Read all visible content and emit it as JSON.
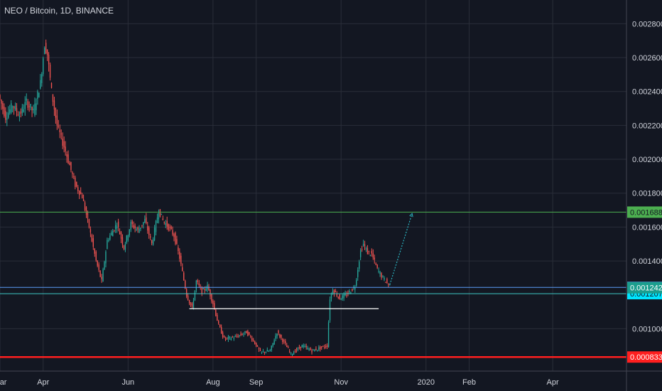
{
  "header": {
    "symbol": "NEO / Bitcoin, 1D, BINANCE"
  },
  "colors": {
    "background": "#131722",
    "grid": "#2a2e39",
    "up": "#26a69a",
    "down": "#ef5350",
    "text": "#d1d4dc",
    "green_line": "#4caf50",
    "blue_line": "#5b9cf6",
    "teal_line": "#3dc6c4",
    "red_line": "#ff1f1f",
    "white_line": "#ffffff",
    "forecast": "#2bb3c0"
  },
  "chart_data": {
    "type": "candlestick",
    "title": "NEO / Bitcoin, 1D, BINANCE",
    "x_ticks": [
      "Mar",
      "Apr",
      "Jun",
      "Aug",
      "Sep",
      "Nov",
      "2020",
      "Feb",
      "Apr"
    ],
    "x_tick_days": [
      0,
      31,
      92,
      153,
      184,
      245,
      306,
      337,
      397
    ],
    "x_range_days": [
      0,
      450
    ],
    "y_ticks": [
      "0.002800",
      "0.002600",
      "0.002400",
      "0.002200",
      "0.002000",
      "0.001800",
      "0.001600",
      "0.001400",
      "0.001000"
    ],
    "y_tick_values": [
      0.0028,
      0.0026,
      0.0024,
      0.0022,
      0.002,
      0.0018,
      0.0016,
      0.0014,
      0.001
    ],
    "ylim": [
      0.00075,
      0.00294
    ],
    "price_path": [
      [
        0,
        0.00238
      ],
      [
        5,
        0.00225
      ],
      [
        10,
        0.00232
      ],
      [
        15,
        0.00226
      ],
      [
        20,
        0.00234
      ],
      [
        25,
        0.00228
      ],
      [
        30,
        0.00245
      ],
      [
        33,
        0.00268
      ],
      [
        35,
        0.00262
      ],
      [
        38,
        0.0024
      ],
      [
        42,
        0.0022
      ],
      [
        48,
        0.00205
      ],
      [
        55,
        0.00185
      ],
      [
        60,
        0.00178
      ],
      [
        65,
        0.0016
      ],
      [
        70,
        0.0014
      ],
      [
        74,
        0.00128
      ],
      [
        78,
        0.00152
      ],
      [
        85,
        0.00162
      ],
      [
        90,
        0.00148
      ],
      [
        95,
        0.00162
      ],
      [
        100,
        0.00158
      ],
      [
        105,
        0.00164
      ],
      [
        110,
        0.0015
      ],
      [
        115,
        0.0017
      ],
      [
        118,
        0.00164
      ],
      [
        122,
        0.0016
      ],
      [
        126,
        0.00155
      ],
      [
        130,
        0.00142
      ],
      [
        135,
        0.0012
      ],
      [
        139,
        0.00112
      ],
      [
        142,
        0.00128
      ],
      [
        146,
        0.00122
      ],
      [
        150,
        0.00125
      ],
      [
        154,
        0.00115
      ],
      [
        158,
        0.00102
      ],
      [
        162,
        0.00094
      ],
      [
        170,
        0.00095
      ],
      [
        178,
        0.00098
      ],
      [
        183,
        0.00093
      ],
      [
        188,
        0.00086
      ],
      [
        195,
        0.00087
      ],
      [
        200,
        0.00098
      ],
      [
        205,
        0.00092
      ],
      [
        210,
        0.00085
      ],
      [
        218,
        0.0009
      ],
      [
        225,
        0.00087
      ],
      [
        232,
        0.00089
      ],
      [
        236,
        0.0009
      ],
      [
        238,
        0.00118
      ],
      [
        240,
        0.00123
      ],
      [
        245,
        0.00118
      ],
      [
        250,
        0.0012
      ],
      [
        256,
        0.00125
      ],
      [
        260,
        0.00146
      ],
      [
        262,
        0.0015
      ],
      [
        265,
        0.00145
      ],
      [
        268,
        0.00144
      ],
      [
        272,
        0.00135
      ],
      [
        276,
        0.0013
      ],
      [
        280,
        0.00126
      ]
    ],
    "forecast_path": [
      [
        280,
        0.00126
      ],
      [
        296,
        0.00168
      ]
    ],
    "levels": [
      {
        "name": "green",
        "value": 0.001688,
        "label": "0.001688",
        "style": "solid"
      },
      {
        "name": "blue",
        "value": 0.001244,
        "label": "0.001244",
        "style": "solid"
      },
      {
        "name": "teal",
        "value": 0.001207,
        "label": "0.001207",
        "style": "solid"
      },
      {
        "name": "red",
        "value": 0.000833,
        "label": "0.000833",
        "style": "bold"
      }
    ],
    "extra_tags": [
      {
        "name": "current-price",
        "value": 0.001242,
        "label": "0.001242"
      }
    ],
    "segments": [
      {
        "name": "white-support",
        "x_from": 136,
        "x_to": 272,
        "value": 0.001118
      }
    ]
  }
}
